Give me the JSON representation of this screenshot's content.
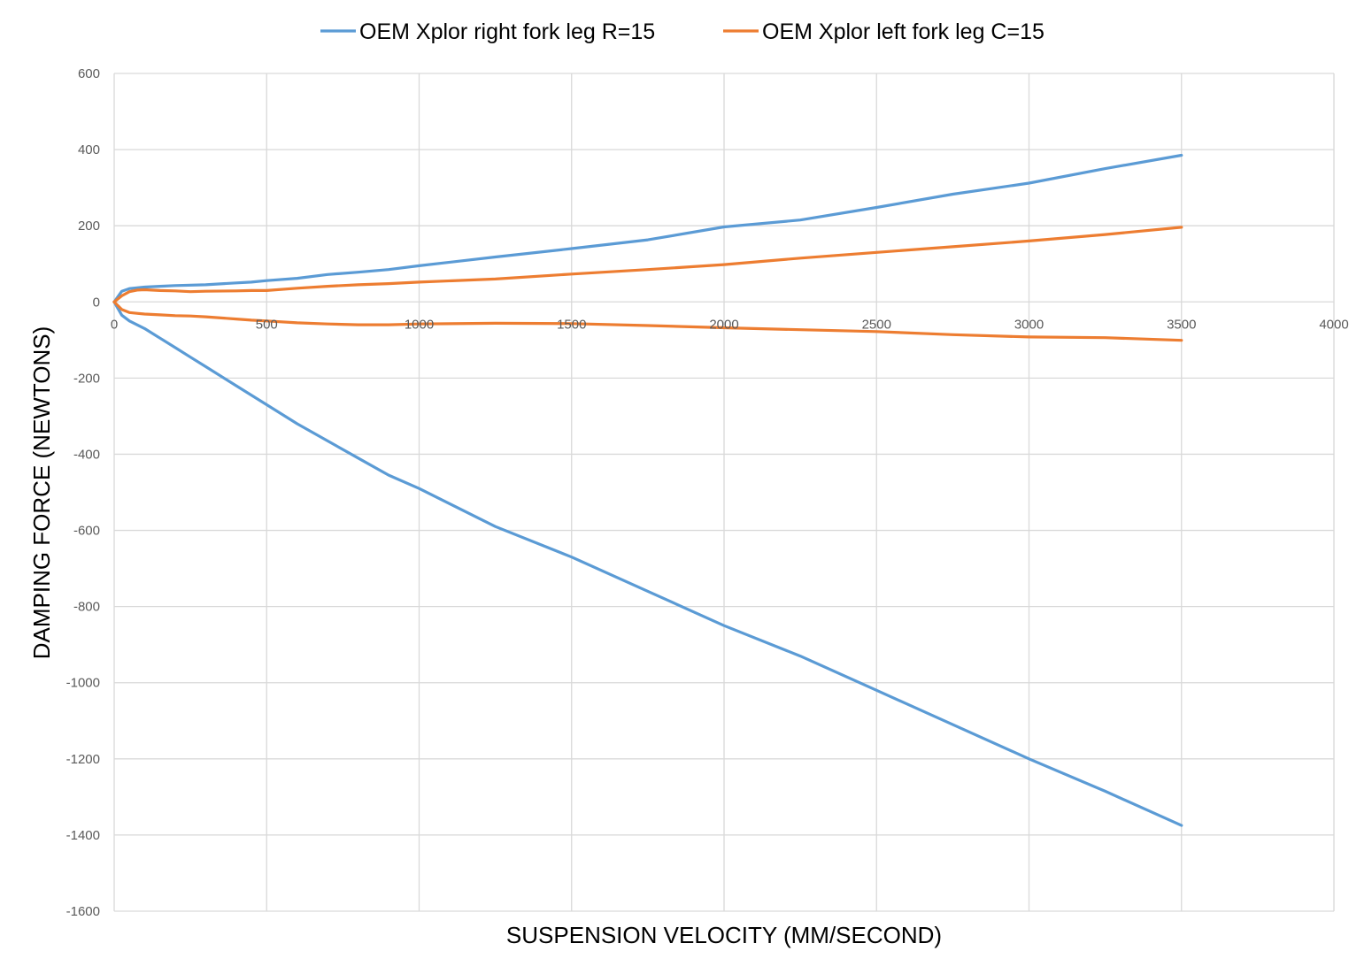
{
  "chart_data": {
    "type": "line",
    "title": "",
    "xlabel": "SUSPENSION VELOCITY (MM/SECOND)",
    "ylabel": "DAMPING FORCE (NEWTONS)",
    "xlim": [
      0,
      4000
    ],
    "ylim": [
      -1600,
      600
    ],
    "x_ticks": [
      "0",
      "500",
      "1000",
      "1500",
      "2000",
      "2500",
      "3000",
      "3500",
      "4000"
    ],
    "y_ticks": [
      "600",
      "400",
      "200",
      "0",
      "-200",
      "-400",
      "-600",
      "-800",
      "-1000",
      "-1200",
      "-1400",
      "-1600"
    ],
    "grid": true,
    "legend_position": "top",
    "series": [
      {
        "name": "OEM Xplor right fork leg R=15",
        "color": "#5b9bd5",
        "segments": [
          {
            "x": [
              0,
              25,
              50,
              100,
              150,
              200,
              300,
              400,
              450,
              500,
              600,
              700,
              800,
              900,
              1000,
              1250,
              1500,
              1750,
              2000,
              2250,
              2500,
              2750,
              3000,
              3250,
              3500
            ],
            "y": [
              0,
              28,
              35,
              39,
              41,
              43,
              45,
              50,
              52,
              56,
              62,
              72,
              78,
              85,
              95,
              118,
              140,
              163,
              197,
              215,
              248,
              283,
              312,
              350,
              385
            ]
          },
          {
            "x": [
              0,
              25,
              50,
              100,
              150,
              200,
              250,
              300,
              400,
              500,
              600,
              700,
              800,
              900,
              1000,
              1250,
              1500,
              1750,
              2000,
              2250,
              2500,
              2750,
              3000,
              3250,
              3500
            ],
            "y": [
              0,
              -35,
              -50,
              -70,
              -95,
              -120,
              -145,
              -170,
              -220,
              -270,
              -320,
              -365,
              -410,
              -455,
              -490,
              -590,
              -670,
              -760,
              -850,
              -930,
              -1020,
              -1110,
              -1200,
              -1285,
              -1375
            ]
          }
        ]
      },
      {
        "name": "OEM Xplor left fork leg C=15",
        "color": "#ed7d31",
        "segments": [
          {
            "x": [
              0,
              25,
              50,
              75,
              100,
              150,
              200,
              250,
              300,
              400,
              450,
              500,
              600,
              700,
              800,
              900,
              1000,
              1250,
              1500,
              1750,
              2000,
              2250,
              2500,
              2750,
              3000,
              3250,
              3500
            ],
            "y": [
              0,
              16,
              27,
              31,
              32,
              30,
              29,
              27,
              28,
              29,
              30,
              30,
              36,
              41,
              45,
              48,
              52,
              60,
              73,
              85,
              98,
              115,
              130,
              145,
              160,
              177,
              196
            ]
          },
          {
            "x": [
              0,
              25,
              50,
              75,
              100,
              150,
              200,
              250,
              300,
              400,
              450,
              500,
              600,
              700,
              800,
              900,
              1000,
              1250,
              1500,
              1750,
              2000,
              2250,
              2500,
              2750,
              3000,
              3250,
              3500
            ],
            "y": [
              0,
              -20,
              -28,
              -30,
              -32,
              -34,
              -36,
              -37,
              -39,
              -45,
              -48,
              -50,
              -55,
              -58,
              -60,
              -60,
              -58,
              -56,
              -57,
              -62,
              -68,
              -73,
              -78,
              -86,
              -92,
              -94,
              -101
            ]
          }
        ]
      }
    ]
  }
}
